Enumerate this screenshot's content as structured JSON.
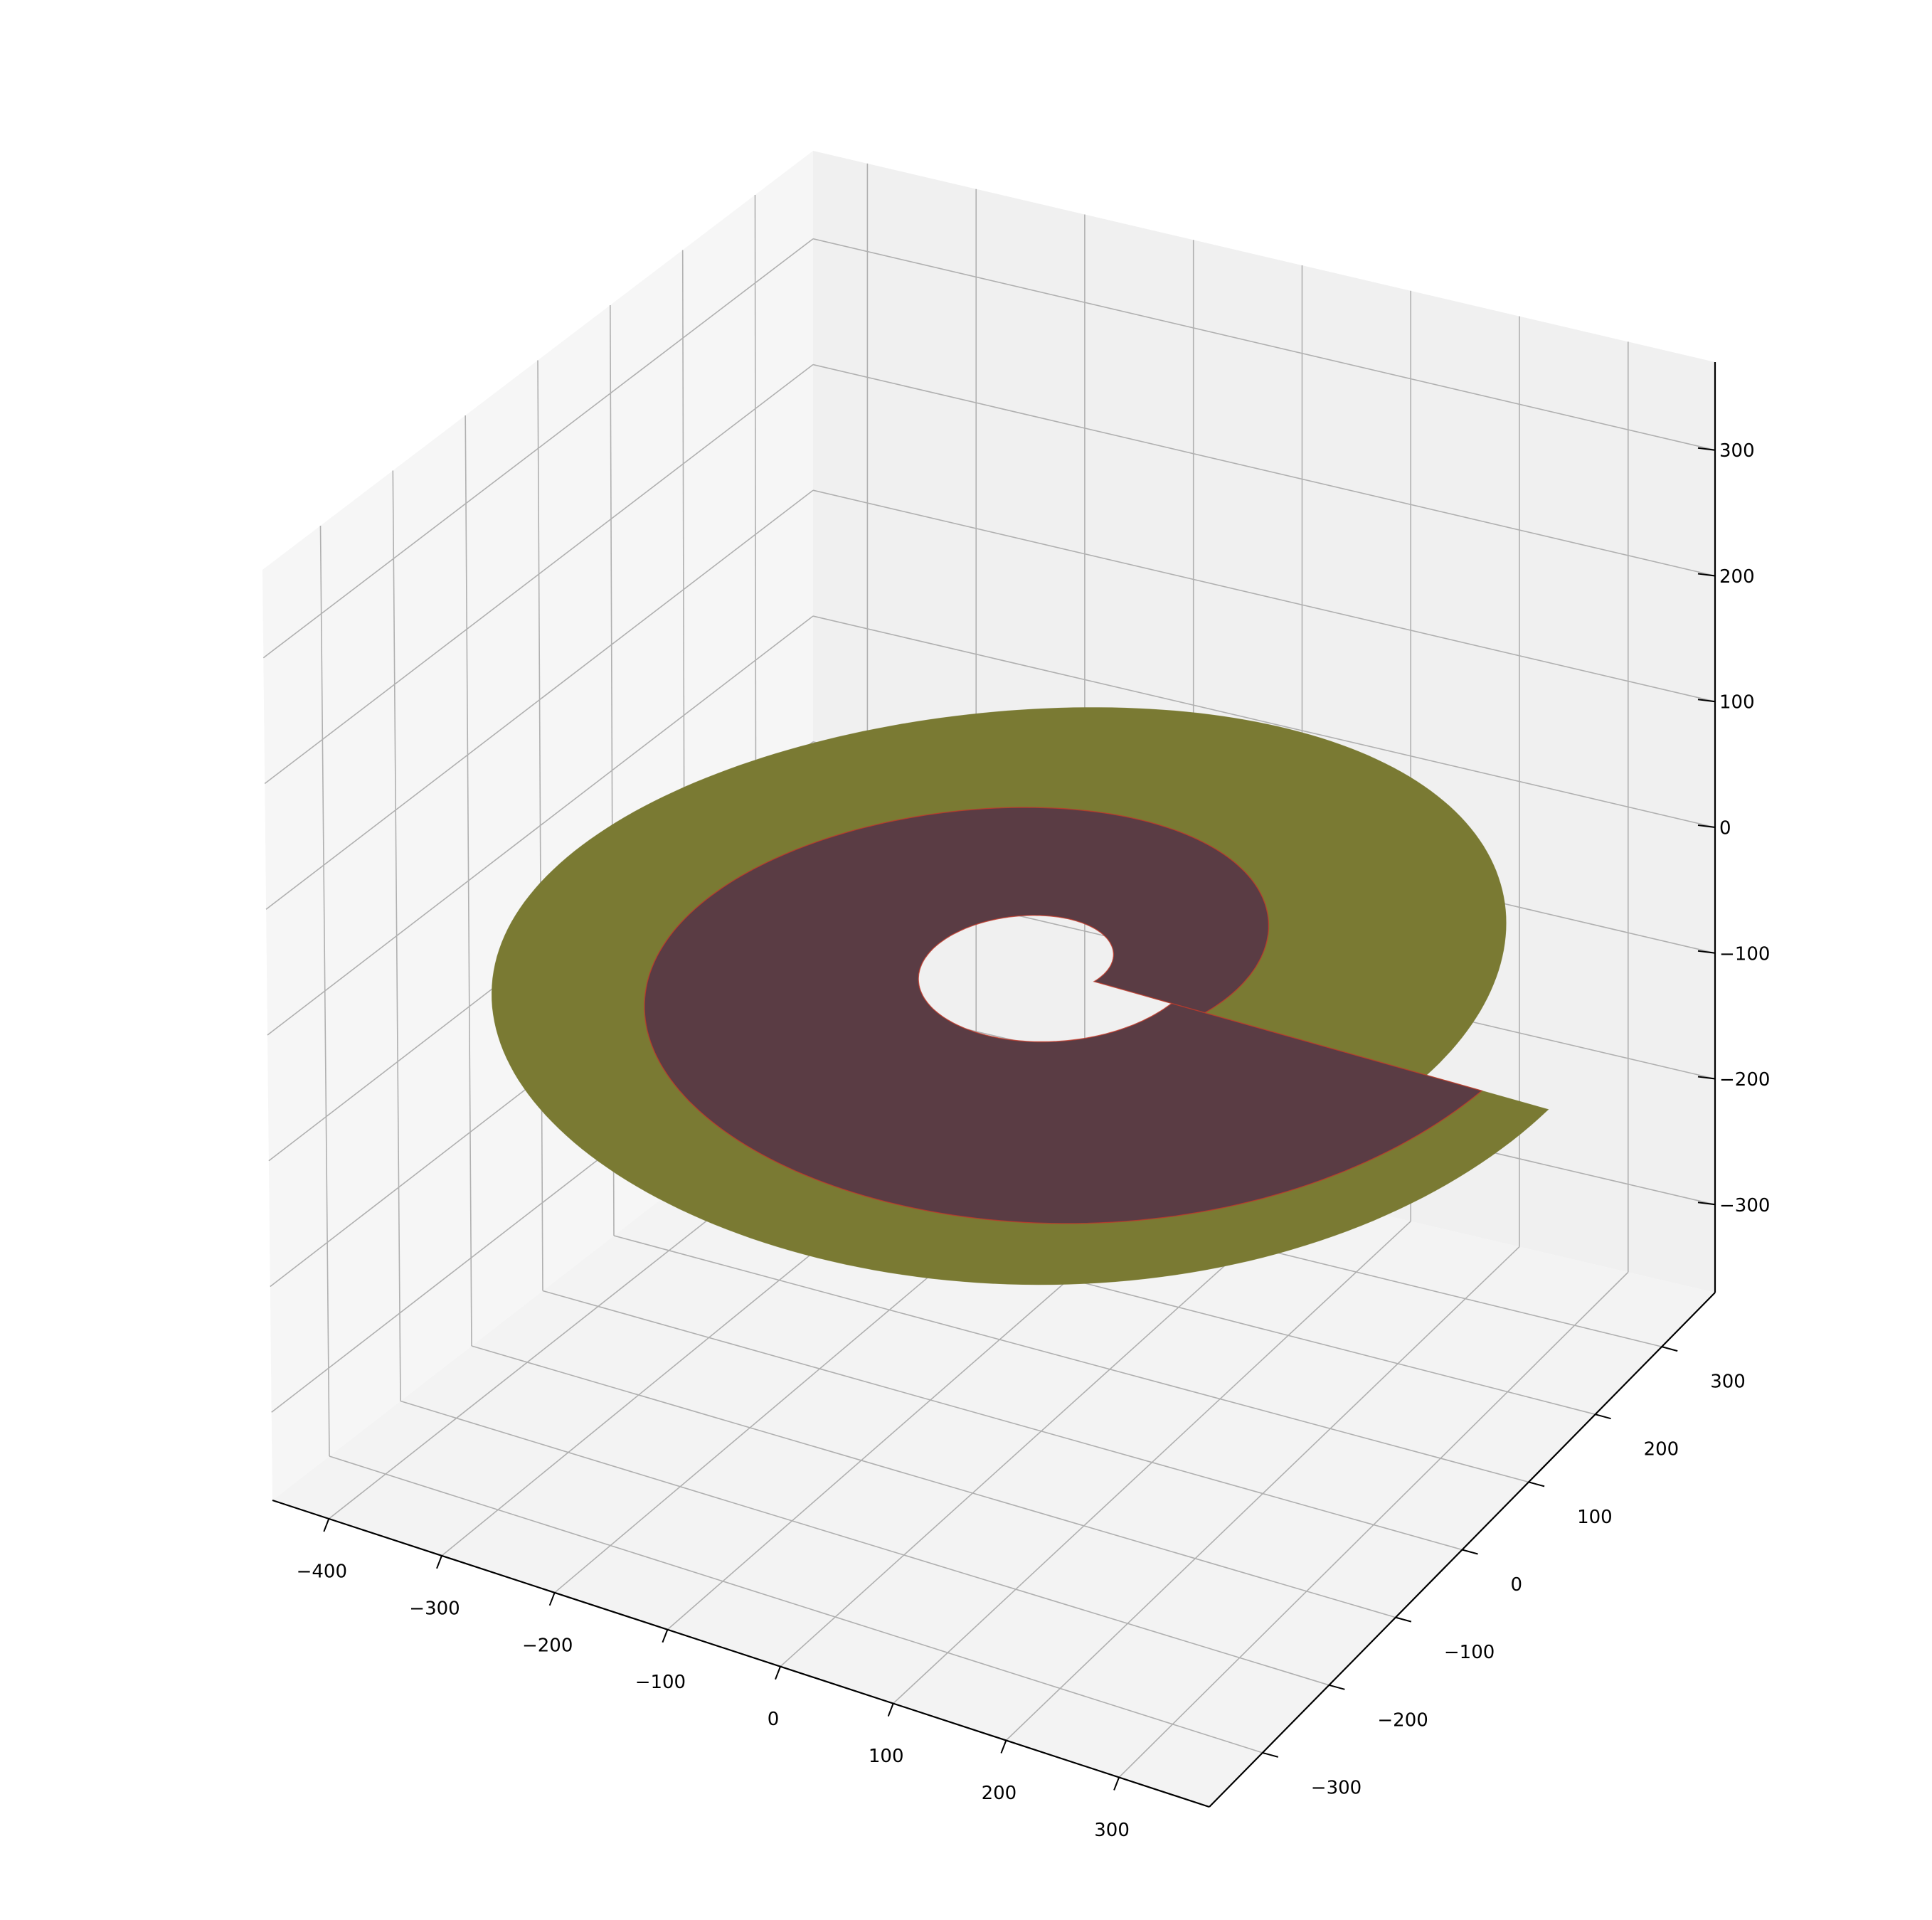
{
  "chart_data": {
    "type": "surface3d",
    "title": "",
    "xlabel": "",
    "ylabel": "",
    "zlabel": "",
    "xlim": [
      -450,
      380
    ],
    "ylim": [
      -380,
      380
    ],
    "zlim": [
      -370,
      370
    ],
    "grid": true,
    "x_ticks": [
      -400,
      -300,
      -200,
      -100,
      0,
      100,
      200,
      300
    ],
    "y_ticks": [
      -300,
      -200,
      -100,
      0,
      100,
      200,
      300
    ],
    "z_ticks": [
      -300,
      -200,
      -100,
      0,
      100,
      200,
      300
    ],
    "x_tick_labels": [
      "−400",
      "−300",
      "−200",
      "−100",
      "0",
      "100",
      "200",
      "300"
    ],
    "y_tick_labels": [
      "−300",
      "−200",
      "−100",
      "0",
      "100",
      "200",
      "300"
    ],
    "z_tick_labels": [
      "−300",
      "−200",
      "−100",
      "0",
      "100",
      "200",
      "300"
    ],
    "surfaces": [
      {
        "shape": "annular-spiral",
        "z": 0,
        "inner_radius_start": 100,
        "inner_radius_end": 210,
        "outer_radius_start": 350,
        "outer_radius_end": 460,
        "color": "#7a7a33"
      },
      {
        "shape": "annular-spiral",
        "z": 0,
        "inner_radius_start": 50,
        "inner_radius_end": 120,
        "outer_radius_start": 150,
        "outer_radius_end": 400,
        "color": "#5a3c44",
        "edge_color": "#c0392b"
      }
    ]
  },
  "colors": {
    "pane_back": "#f0f0f0",
    "pane_side": "#f6f6f6",
    "pane_floor": "#f3f3f3",
    "grid": "#b0b0b0"
  }
}
